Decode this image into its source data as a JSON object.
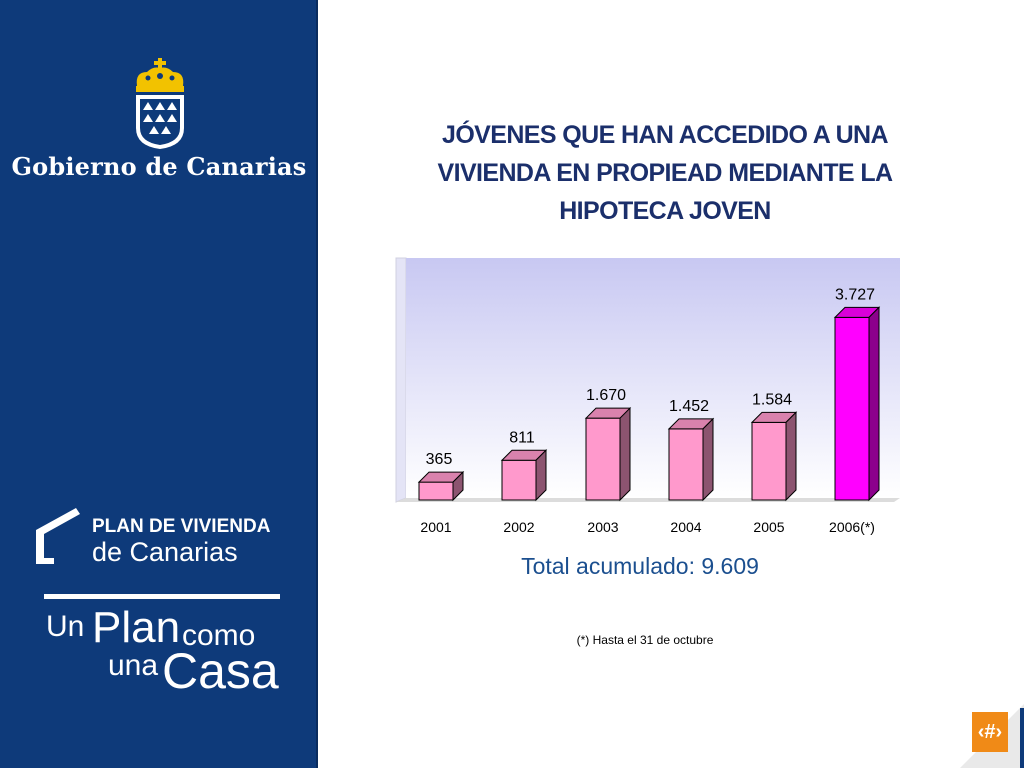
{
  "sidebar": {
    "government_name": "Gobierno de Canarias",
    "plan_line1": "PLAN DE VIVIENDA",
    "plan_line2": "de Canarias",
    "slogan": {
      "un": "Un",
      "plan": "Plan",
      "como": "como",
      "una": "una",
      "casa": "Casa"
    },
    "icons": [
      "crown-shield-logo",
      "house-roof-logo"
    ],
    "colors": {
      "panel": "#0e3a7a",
      "text": "#ffffff"
    }
  },
  "main": {
    "title_lines": [
      "JÓVENES QUE HAN ACCEDIDO A UNA",
      "VIVIENDA EN PROPIEAD MEDIANTE LA",
      "HIPOTECA JOVEN"
    ],
    "total": "Total acumulado: 9.609",
    "footnote": "(*) Hasta el 31 de octubre"
  },
  "chart_data": {
    "type": "bar",
    "title": "JÓVENES QUE HAN ACCEDIDO A UNA VIVIENDA EN PROPIEAD MEDIANTE LA HIPOTECA JOVEN",
    "categories": [
      "2001",
      "2002",
      "2003",
      "2004",
      "2005",
      "2006(*)"
    ],
    "values": [
      365,
      811,
      1670,
      1452,
      1584,
      3727
    ],
    "value_labels": [
      "365",
      "811",
      "1.670",
      "1.452",
      "1.584",
      "3.727"
    ],
    "xlabel": "",
    "ylabel": "",
    "ylim": [
      0,
      4000
    ],
    "grid": false,
    "legend": "none",
    "style": "3d-bars",
    "colors": {
      "bar": "#ff99cc",
      "bar_highlight": "#ff00ff",
      "wall_top": "#c8c8f2",
      "wall_bottom": "#ffffff"
    }
  },
  "footer": {
    "slide_number": "‹#›"
  }
}
